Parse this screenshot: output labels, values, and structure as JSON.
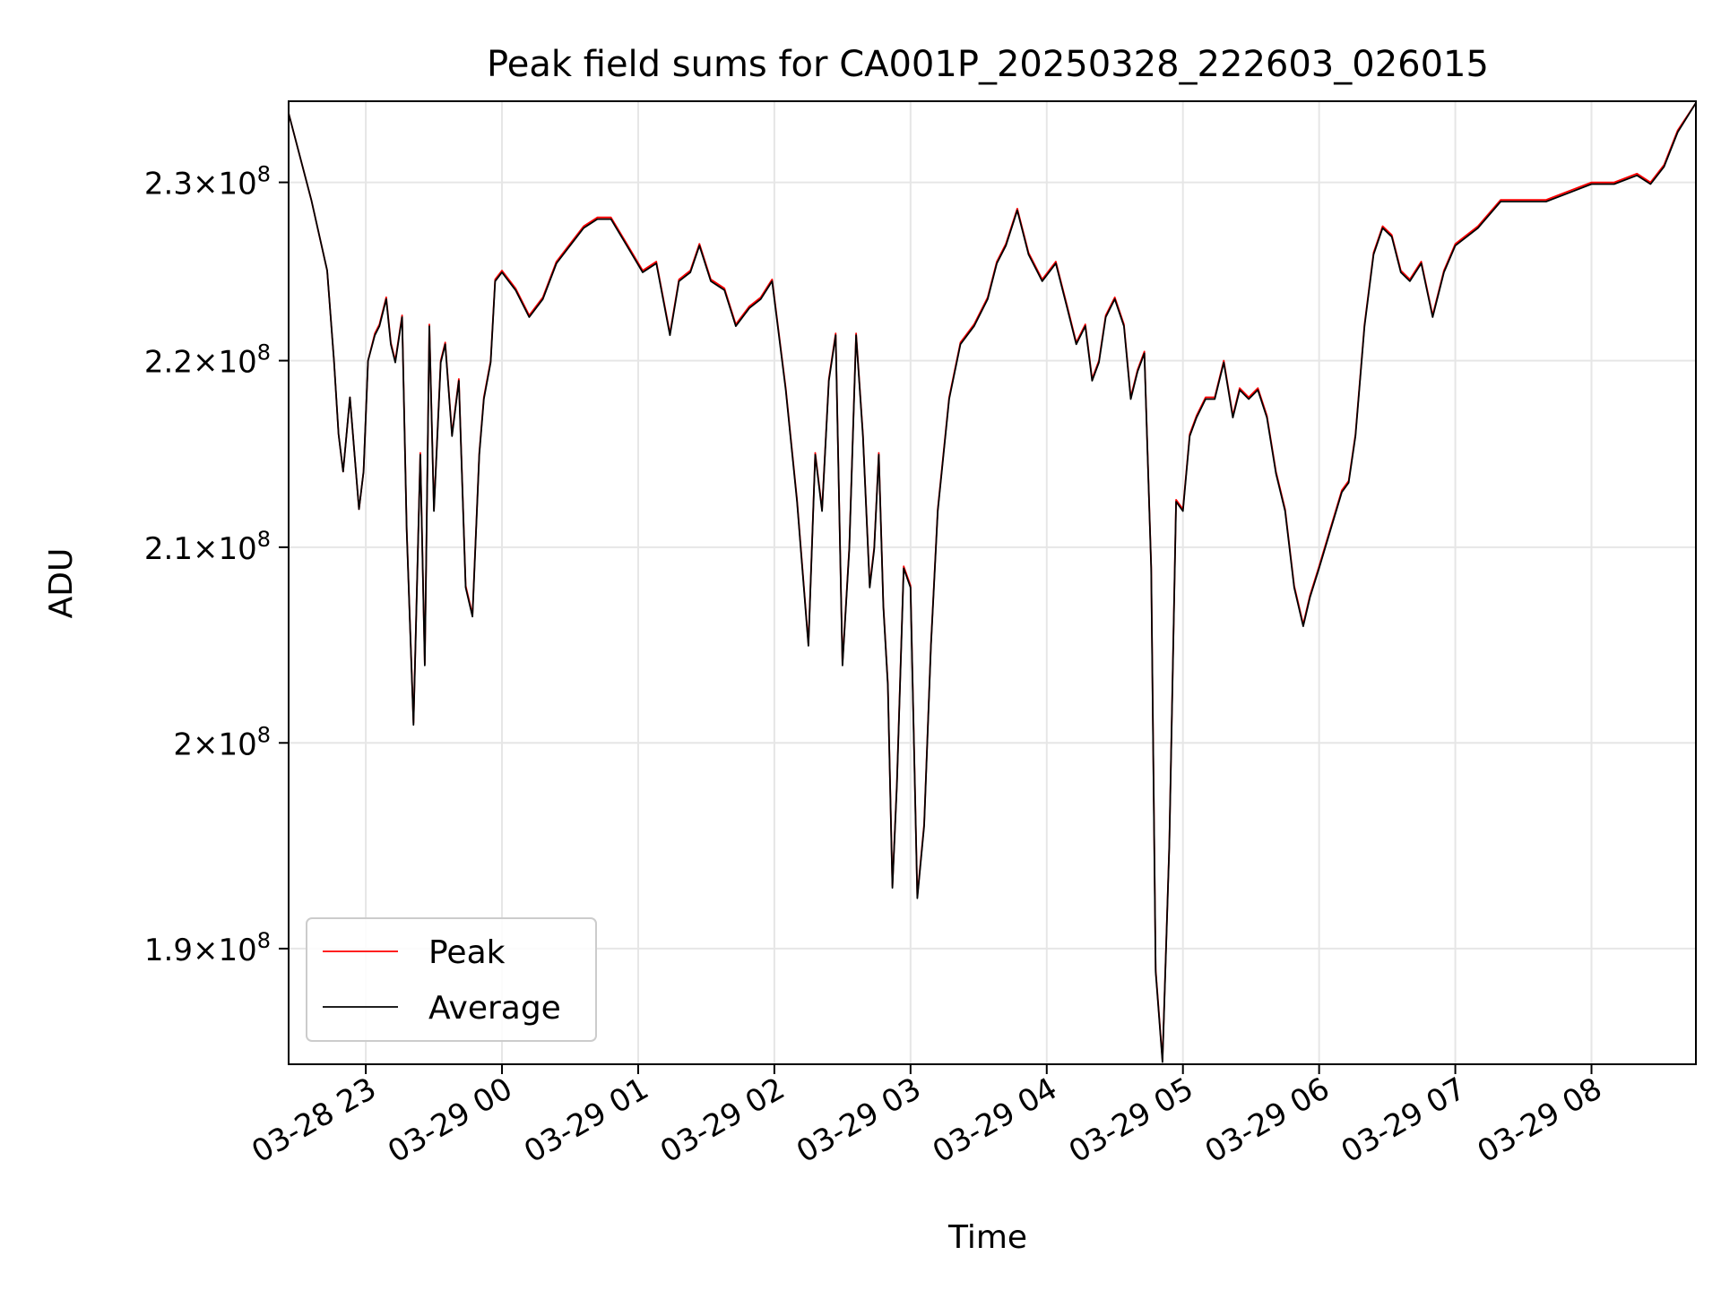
{
  "chart_data": {
    "type": "line",
    "title": "Peak field sums for CA001P_20250328_222603_026015",
    "xlabel": "Time",
    "ylabel": "ADU",
    "yscale": "log",
    "grid": true,
    "legend_placement": "lower-left",
    "xlim": [
      "2025-03-28 22:26",
      "2025-03-29 08:46"
    ],
    "ylim": [
      184600000,
      234700000
    ],
    "x_ticks": [
      {
        "value": "2025-03-28 23:00",
        "label": "03-28 23"
      },
      {
        "value": "2025-03-29 00:00",
        "label": "03-29 00"
      },
      {
        "value": "2025-03-29 01:00",
        "label": "03-29 01"
      },
      {
        "value": "2025-03-29 02:00",
        "label": "03-29 02"
      },
      {
        "value": "2025-03-29 03:00",
        "label": "03-29 03"
      },
      {
        "value": "2025-03-29 04:00",
        "label": "03-29 04"
      },
      {
        "value": "2025-03-29 05:00",
        "label": "03-29 05"
      },
      {
        "value": "2025-03-29 06:00",
        "label": "03-29 06"
      },
      {
        "value": "2025-03-29 07:00",
        "label": "03-29 07"
      },
      {
        "value": "2025-03-29 08:00",
        "label": "03-29 08"
      }
    ],
    "y_ticks": [
      {
        "value": 190000000,
        "mantissa": "1.9",
        "exponent": "8"
      },
      {
        "value": 200000000,
        "mantissa": "2",
        "exponent": "8"
      },
      {
        "value": 210000000,
        "mantissa": "2.1",
        "exponent": "8"
      },
      {
        "value": 220000000,
        "mantissa": "2.2",
        "exponent": "8"
      },
      {
        "value": 230000000,
        "mantissa": "2.3",
        "exponent": "8"
      }
    ],
    "x": [
      "2025-03-28 22:26",
      "2025-03-28 22:36",
      "2025-03-28 22:43",
      "2025-03-28 22:46",
      "2025-03-28 22:48",
      "2025-03-28 22:50",
      "2025-03-28 22:53",
      "2025-03-28 22:55",
      "2025-03-28 22:57",
      "2025-03-28 22:59",
      "2025-03-28 23:01",
      "2025-03-28 23:04",
      "2025-03-28 23:06",
      "2025-03-28 23:09",
      "2025-03-28 23:11",
      "2025-03-28 23:13",
      "2025-03-28 23:16",
      "2025-03-28 23:18",
      "2025-03-28 23:21",
      "2025-03-28 23:24",
      "2025-03-28 23:26",
      "2025-03-28 23:28",
      "2025-03-28 23:30",
      "2025-03-28 23:33",
      "2025-03-28 23:35",
      "2025-03-28 23:38",
      "2025-03-28 23:41",
      "2025-03-28 23:44",
      "2025-03-28 23:47",
      "2025-03-28 23:50",
      "2025-03-28 23:52",
      "2025-03-28 23:55",
      "2025-03-28 23:57",
      "2025-03-29 00:00",
      "2025-03-29 00:06",
      "2025-03-29 00:12",
      "2025-03-29 00:18",
      "2025-03-29 00:24",
      "2025-03-29 00:30",
      "2025-03-29 00:36",
      "2025-03-29 00:42",
      "2025-03-29 00:48",
      "2025-03-29 00:55",
      "2025-03-29 01:02",
      "2025-03-29 01:08",
      "2025-03-29 01:14",
      "2025-03-29 01:18",
      "2025-03-29 01:23",
      "2025-03-29 01:27",
      "2025-03-29 01:32",
      "2025-03-29 01:38",
      "2025-03-29 01:43",
      "2025-03-29 01:49",
      "2025-03-29 01:54",
      "2025-03-29 01:59",
      "2025-03-29 02:05",
      "2025-03-29 02:10",
      "2025-03-29 02:15",
      "2025-03-29 02:18",
      "2025-03-29 02:21",
      "2025-03-29 02:24",
      "2025-03-29 02:27",
      "2025-03-29 02:30",
      "2025-03-29 02:33",
      "2025-03-29 02:36",
      "2025-03-29 02:39",
      "2025-03-29 02:42",
      "2025-03-29 02:44",
      "2025-03-29 02:46",
      "2025-03-29 02:48",
      "2025-03-29 02:50",
      "2025-03-29 02:52",
      "2025-03-29 02:54",
      "2025-03-29 02:57",
      "2025-03-29 03:00",
      "2025-03-29 03:03",
      "2025-03-29 03:06",
      "2025-03-29 03:09",
      "2025-03-29 03:12",
      "2025-03-29 03:17",
      "2025-03-29 03:22",
      "2025-03-29 03:28",
      "2025-03-29 03:34",
      "2025-03-29 03:38",
      "2025-03-29 03:42",
      "2025-03-29 03:47",
      "2025-03-29 03:52",
      "2025-03-29 03:58",
      "2025-03-29 04:04",
      "2025-03-29 04:09",
      "2025-03-29 04:13",
      "2025-03-29 04:17",
      "2025-03-29 04:20",
      "2025-03-29 04:23",
      "2025-03-29 04:26",
      "2025-03-29 04:30",
      "2025-03-29 04:34",
      "2025-03-29 04:37",
      "2025-03-29 04:40",
      "2025-03-29 04:43",
      "2025-03-29 04:46",
      "2025-03-29 04:48",
      "2025-03-29 04:51",
      "2025-03-29 04:54",
      "2025-03-29 04:57",
      "2025-03-29 05:00",
      "2025-03-29 05:03",
      "2025-03-29 05:06",
      "2025-03-29 05:10",
      "2025-03-29 05:14",
      "2025-03-29 05:18",
      "2025-03-29 05:22",
      "2025-03-29 05:25",
      "2025-03-29 05:29",
      "2025-03-29 05:33",
      "2025-03-29 05:37",
      "2025-03-29 05:41",
      "2025-03-29 05:45",
      "2025-03-29 05:49",
      "2025-03-29 05:53",
      "2025-03-29 05:56",
      "2025-03-29 06:00",
      "2025-03-29 06:05",
      "2025-03-29 06:10",
      "2025-03-29 06:13",
      "2025-03-29 06:16",
      "2025-03-29 06:20",
      "2025-03-29 06:24",
      "2025-03-29 06:28",
      "2025-03-29 06:32",
      "2025-03-29 06:36",
      "2025-03-29 06:40",
      "2025-03-29 06:45",
      "2025-03-29 06:50",
      "2025-03-29 06:55",
      "2025-03-29 07:00",
      "2025-03-29 07:10",
      "2025-03-29 07:20",
      "2025-03-29 07:30",
      "2025-03-29 07:40",
      "2025-03-29 07:50",
      "2025-03-29 08:00",
      "2025-03-29 08:10",
      "2025-03-29 08:20",
      "2025-03-29 08:26",
      "2025-03-29 08:32",
      "2025-03-29 08:38",
      "2025-03-29 08:46"
    ],
    "series": [
      {
        "name": "Peak",
        "color": "#ff0000",
        "values": [
          234000000,
          229000000,
          225000000,
          220000000,
          216000000,
          214000000,
          218000000,
          215000000,
          212000000,
          214000000,
          220000000,
          221500000,
          222000000,
          223500000,
          221000000,
          220000000,
          222500000,
          211000000,
          201000000,
          215000000,
          204000000,
          222000000,
          212000000,
          220000000,
          221000000,
          216000000,
          219000000,
          208000000,
          206500000,
          215000000,
          218000000,
          220000000,
          224500000,
          225000000,
          224000000,
          222500000,
          223500000,
          225500000,
          226500000,
          227500000,
          228000000,
          228000000,
          226500000,
          225000000,
          225500000,
          221500000,
          224500000,
          225000000,
          226500000,
          224500000,
          224000000,
          222000000,
          223000000,
          223500000,
          224500000,
          218500000,
          212500000,
          205000000,
          215000000,
          212000000,
          219000000,
          221500000,
          204000000,
          210000000,
          221500000,
          216000000,
          208000000,
          210000000,
          215000000,
          207000000,
          203000000,
          193000000,
          198000000,
          209000000,
          208000000,
          192500000,
          196000000,
          205000000,
          212000000,
          218000000,
          221000000,
          222000000,
          223500000,
          225500000,
          226500000,
          228500000,
          226000000,
          224500000,
          225500000,
          223000000,
          221000000,
          222000000,
          219000000,
          220000000,
          222500000,
          223500000,
          222000000,
          218000000,
          219500000,
          220500000,
          209000000,
          189000000,
          184800000,
          195000000,
          212500000,
          212000000,
          216000000,
          217000000,
          218000000,
          218000000,
          220000000,
          217000000,
          218500000,
          218000000,
          218500000,
          217000000,
          214000000,
          212000000,
          208000000,
          206000000,
          207500000,
          209000000,
          211000000,
          213000000,
          213500000,
          216000000,
          222000000,
          226000000,
          227500000,
          227000000,
          225000000,
          224500000,
          225500000,
          222500000,
          225000000,
          226500000,
          227500000,
          229000000,
          229000000,
          229000000,
          229500000,
          230000000,
          230000000,
          230500000,
          230000000,
          231000000,
          233000000,
          234600000
        ]
      },
      {
        "name": "Average",
        "color": "#000000",
        "values": [
          234000000,
          229000000,
          225000000,
          220000000,
          216000000,
          214000000,
          218000000,
          215000000,
          212000000,
          214000000,
          220000000,
          221400000,
          221900000,
          223400000,
          220900000,
          219900000,
          222400000,
          210900000,
          200900000,
          214900000,
          203900000,
          221900000,
          211900000,
          219900000,
          220900000,
          215900000,
          218900000,
          207900000,
          206400000,
          214900000,
          217900000,
          219900000,
          224400000,
          224900000,
          223900000,
          222400000,
          223400000,
          225400000,
          226400000,
          227400000,
          227900000,
          227900000,
          226400000,
          224900000,
          225400000,
          221400000,
          224400000,
          224900000,
          226400000,
          224400000,
          223900000,
          221900000,
          222900000,
          223400000,
          224400000,
          218400000,
          212400000,
          204900000,
          214900000,
          211900000,
          218900000,
          221400000,
          203900000,
          209900000,
          221400000,
          215900000,
          207900000,
          209900000,
          214900000,
          206900000,
          202900000,
          192900000,
          197900000,
          208900000,
          207900000,
          192400000,
          195900000,
          204900000,
          211900000,
          217900000,
          220900000,
          221900000,
          223400000,
          225400000,
          226400000,
          228400000,
          225900000,
          224400000,
          225400000,
          222900000,
          220900000,
          221900000,
          218900000,
          219900000,
          222400000,
          223400000,
          221900000,
          217900000,
          219400000,
          220400000,
          208900000,
          188900000,
          184700000,
          194900000,
          212400000,
          211900000,
          215900000,
          216900000,
          217900000,
          217900000,
          219900000,
          216900000,
          218400000,
          217900000,
          218400000,
          216900000,
          213900000,
          211900000,
          207900000,
          205900000,
          207400000,
          208900000,
          210900000,
          212900000,
          213400000,
          215900000,
          221900000,
          225900000,
          227400000,
          226900000,
          224900000,
          224400000,
          225400000,
          222400000,
          224900000,
          226400000,
          227400000,
          228900000,
          228900000,
          228900000,
          229400000,
          229900000,
          229900000,
          230400000,
          229900000,
          230900000,
          232900000,
          234600000
        ]
      }
    ]
  }
}
